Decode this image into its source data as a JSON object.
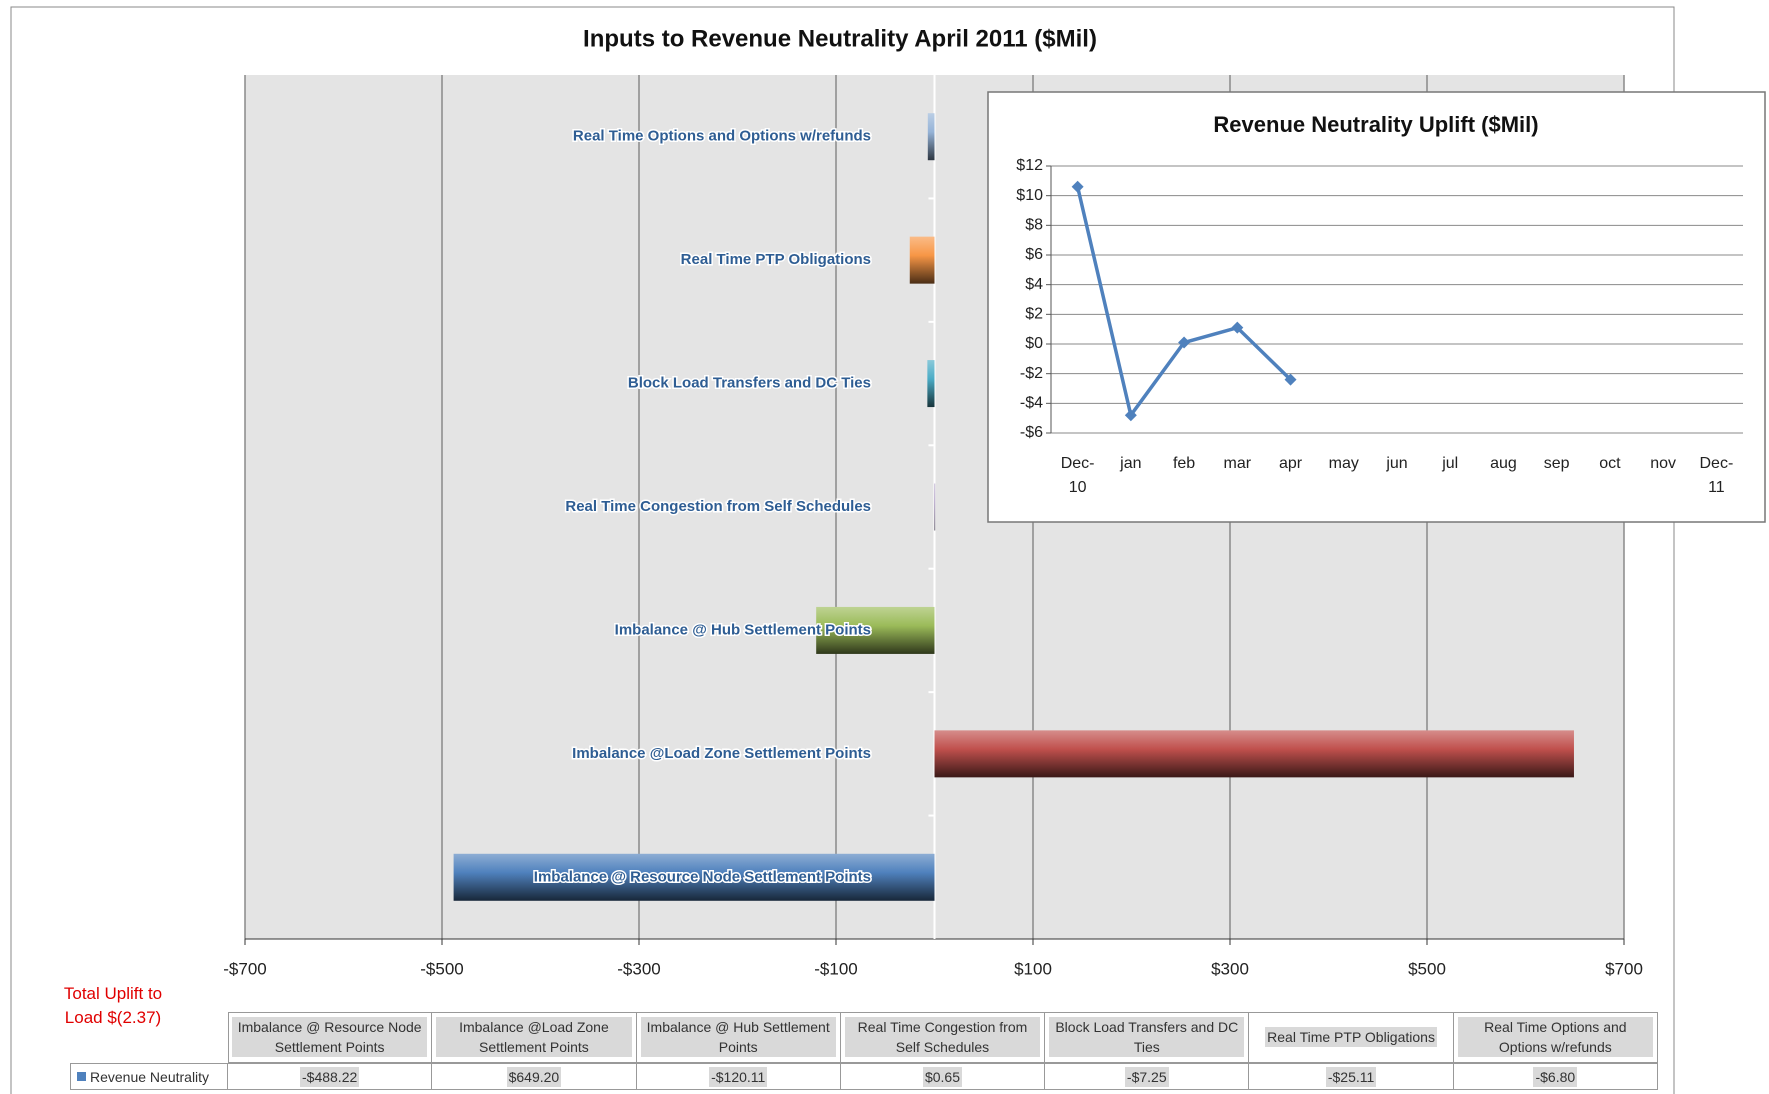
{
  "chart_data": [
    {
      "type": "hbar",
      "title": "Inputs to Revenue Neutrality April 2011 ($Mil)",
      "categories": [
        "Imbalance @ Resource Node Settlement Points",
        "Imbalance @Load Zone Settlement Points",
        "Imbalance @ Hub Settlement Points",
        "Real Time Congestion from Self Schedules",
        "Block Load Transfers and DC Ties",
        "Real Time PTP Obligations",
        "Real Time Options and Options w/refunds"
      ],
      "series": [
        {
          "name": "Revenue Neutrality",
          "color": "#4f81bd",
          "values": [
            -488.22,
            649.2,
            -120.11,
            0.65,
            -7.25,
            -25.11,
            -6.8
          ],
          "value_labels": [
            "-$488.22",
            "$649.20",
            "-$120.11",
            "$0.65",
            "-$7.25",
            "-$25.11",
            "-$6.80"
          ]
        }
      ],
      "colors": [
        "#4f81bd",
        "#c0504d",
        "#9bbb59",
        "#8064a2",
        "#4bacc6",
        "#f79646",
        "#95b3d7"
      ],
      "xlim": [
        -700,
        700
      ],
      "xticks": [
        {
          "value": -700,
          "label": "-$700"
        },
        {
          "value": -500,
          "label": "-$500"
        },
        {
          "value": -300,
          "label": "-$300"
        },
        {
          "value": -100,
          "label": "-$100"
        },
        {
          "value": 100,
          "label": "$100"
        },
        {
          "value": 300,
          "label": "$300"
        },
        {
          "value": 500,
          "label": "$500"
        },
        {
          "value": 700,
          "label": "$700"
        }
      ],
      "grid": true,
      "annotation": "Total Uplift to Load $(2.37)"
    },
    {
      "type": "line",
      "title": "Revenue Neutrality Uplift ($Mil)",
      "categories": [
        "Dec-10",
        "jan",
        "feb",
        "mar",
        "apr",
        "may",
        "jun",
        "jul",
        "aug",
        "sep",
        "oct",
        "nov",
        "Dec-11"
      ],
      "values": [
        10.6,
        -4.8,
        0.1,
        1.1,
        -2.4,
        null,
        null,
        null,
        null,
        null,
        null,
        null,
        null
      ],
      "color": "#4f81bd",
      "ylim": [
        -6,
        12
      ],
      "yticks": [
        {
          "value": 12,
          "label": "$12"
        },
        {
          "value": 10,
          "label": "$10"
        },
        {
          "value": 8,
          "label": "$8"
        },
        {
          "value": 6,
          "label": "$6"
        },
        {
          "value": 4,
          "label": "$4"
        },
        {
          "value": 2,
          "label": "$2"
        },
        {
          "value": 0,
          "label": "$0"
        },
        {
          "value": -2,
          "label": "-$2"
        },
        {
          "value": -4,
          "label": "-$4"
        },
        {
          "value": -6,
          "label": "-$6"
        }
      ],
      "grid": true
    }
  ]
}
